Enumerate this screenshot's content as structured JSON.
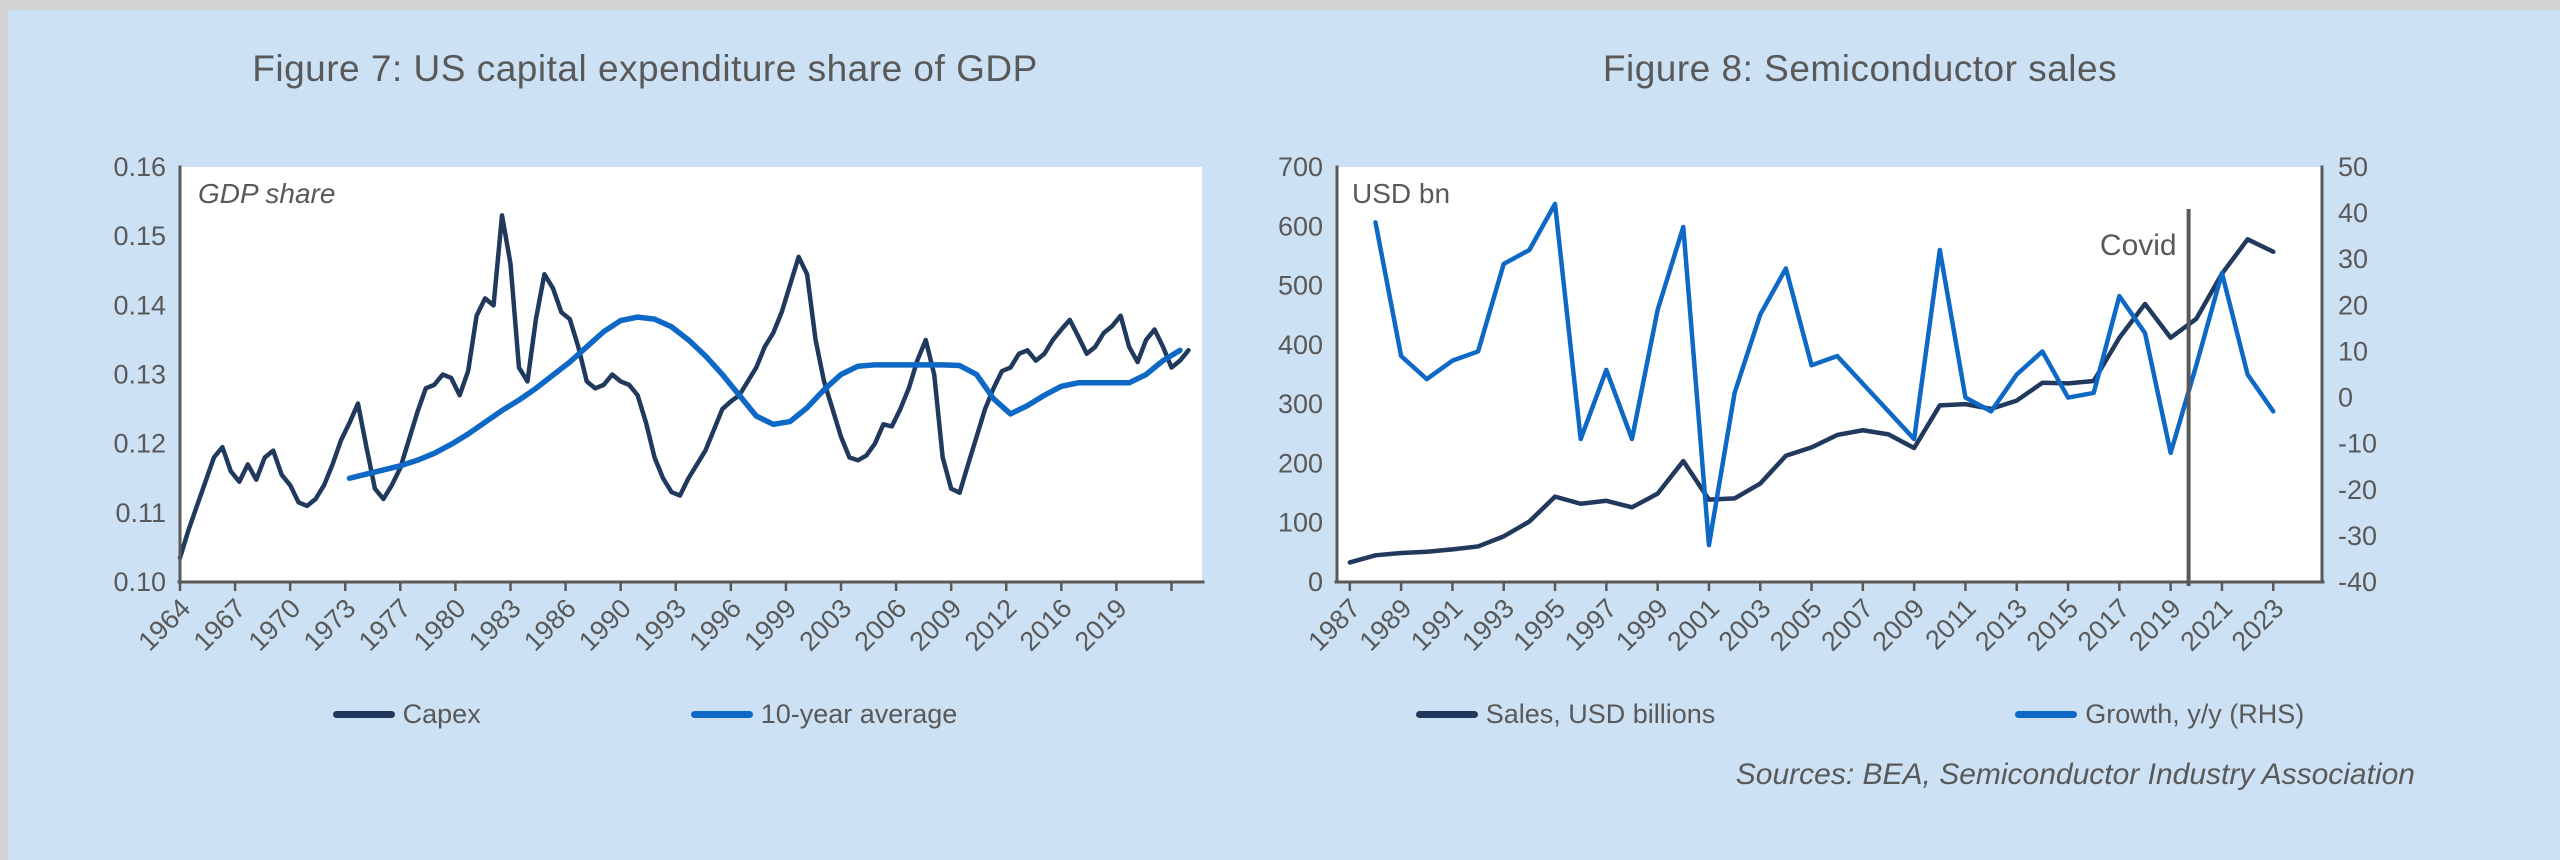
{
  "colors": {
    "panel_bg": "#cde1f4",
    "frame_bg": "#d4d4d4",
    "plot_bg": "#ffffff",
    "axis": "#595959",
    "text": "#595959",
    "navy": "#21395d",
    "blue": "#0e69c6"
  },
  "sources": "Sources: BEA, Semiconductor Industry Association",
  "chart_data": [
    {
      "type": "line",
      "title": "Figure 7: US capital expenditure share of GDP",
      "inner_label": "GDP share",
      "legend_position": "bottom",
      "grid": false,
      "axis_lines": [
        "left",
        "bottom"
      ],
      "x_axis": {
        "min": 1964,
        "max": 2024.3,
        "ticks": [
          {
            "v": 1964,
            "label": "1964"
          },
          {
            "v": 1967.25,
            "label": "1967"
          },
          {
            "v": 1970.5,
            "label": "1970"
          },
          {
            "v": 1973.75,
            "label": "1973"
          },
          {
            "v": 1977,
            "label": "1977"
          },
          {
            "v": 1980.25,
            "label": "1980"
          },
          {
            "v": 1983.5,
            "label": "1983"
          },
          {
            "v": 1986.75,
            "label": "1986"
          },
          {
            "v": 1990,
            "label": "1990"
          },
          {
            "v": 1993.25,
            "label": "1993"
          },
          {
            "v": 1996.5,
            "label": "1996"
          },
          {
            "v": 1999.75,
            "label": "1999"
          },
          {
            "v": 2003,
            "label": "2003"
          },
          {
            "v": 2006.25,
            "label": "2006"
          },
          {
            "v": 2009.5,
            "label": "2009"
          },
          {
            "v": 2012.75,
            "label": "2012"
          },
          {
            "v": 2016,
            "label": "2016"
          },
          {
            "v": 2019.25,
            "label": "2019"
          },
          {
            "v": 2022.5,
            "label": ""
          }
        ]
      },
      "y_axes": [
        {
          "side": "left",
          "min": 0.1,
          "max": 0.16,
          "ticks": [
            {
              "v": 0.16,
              "label": "0.16"
            },
            {
              "v": 0.15,
              "label": "0.15"
            },
            {
              "v": 0.14,
              "label": "0.14"
            },
            {
              "v": 0.13,
              "label": "0.13"
            },
            {
              "v": 0.12,
              "label": "0.12"
            },
            {
              "v": 0.11,
              "label": "0.11"
            },
            {
              "v": 0.1,
              "label": "0.10"
            }
          ]
        }
      ],
      "annotations": [],
      "series": [
        {
          "name": "Capex",
          "color": "navy",
          "width": 4.5,
          "axis": 0,
          "x_start": 1964,
          "x_step": 0.5,
          "values": [
            0.1035,
            0.1075,
            0.111,
            0.1145,
            0.118,
            0.1195,
            0.116,
            0.1145,
            0.117,
            0.1148,
            0.118,
            0.119,
            0.1155,
            0.114,
            0.1115,
            0.111,
            0.112,
            0.114,
            0.117,
            0.1205,
            0.123,
            0.1258,
            0.1195,
            0.1135,
            0.112,
            0.114,
            0.1165,
            0.1205,
            0.1245,
            0.128,
            0.1285,
            0.13,
            0.1295,
            0.127,
            0.1305,
            0.1385,
            0.141,
            0.14,
            0.153,
            0.146,
            0.131,
            0.129,
            0.138,
            0.1445,
            0.1425,
            0.139,
            0.138,
            0.134,
            0.129,
            0.128,
            0.1285,
            0.13,
            0.129,
            0.1285,
            0.127,
            0.123,
            0.118,
            0.115,
            0.113,
            0.1125,
            0.115,
            0.117,
            0.119,
            0.122,
            0.125,
            0.1261,
            0.127,
            0.129,
            0.131,
            0.134,
            0.136,
            0.139,
            0.143,
            0.147,
            0.1445,
            0.135,
            0.129,
            0.125,
            0.121,
            0.118,
            0.1176,
            0.1183,
            0.12,
            0.1228,
            0.1225,
            0.125,
            0.128,
            0.132,
            0.135,
            0.13,
            0.118,
            0.1135,
            0.1129,
            0.117,
            0.121,
            0.125,
            0.128,
            0.1305,
            0.131,
            0.133,
            0.1335,
            0.132,
            0.133,
            0.135,
            0.1365,
            0.1379,
            0.1355,
            0.133,
            0.134,
            0.136,
            0.137,
            0.1385,
            0.134,
            0.1318,
            0.135,
            0.1365,
            0.134,
            0.131,
            0.132,
            0.1335
          ]
        },
        {
          "name": "10-year average",
          "color": "blue",
          "width": 5.5,
          "axis": 0,
          "x_start": 1974,
          "x_step": 1,
          "values": [
            0.115,
            0.1156,
            0.1162,
            0.1168,
            0.1176,
            0.1186,
            0.1199,
            0.1214,
            0.1231,
            0.1248,
            0.1263,
            0.128,
            0.1299,
            0.1318,
            0.134,
            0.1362,
            0.1378,
            0.1383,
            0.138,
            0.1369,
            0.135,
            0.1327,
            0.13,
            0.127,
            0.124,
            0.1228,
            0.1232,
            0.1252,
            0.1278,
            0.13,
            0.1312,
            0.1314,
            0.1314,
            0.1314,
            0.1314,
            0.1314,
            0.1313,
            0.13,
            0.1265,
            0.1243,
            0.1255,
            0.127,
            0.1283,
            0.1288,
            0.1288,
            0.1288,
            0.1288,
            0.13,
            0.132,
            0.1335
          ]
        }
      ]
    },
    {
      "type": "line",
      "title": "Figure 8: Semiconductor sales",
      "inner_label": "USD bn",
      "legend_position": "bottom",
      "grid": false,
      "axis_lines": [
        "left",
        "bottom",
        "right"
      ],
      "x_axis": {
        "min": 1987,
        "max": 2025.4,
        "ticks": [
          {
            "v": 1987.5,
            "label": "1987"
          },
          {
            "v": 1989.5,
            "label": "1989"
          },
          {
            "v": 1991.5,
            "label": "1991"
          },
          {
            "v": 1993.5,
            "label": "1993"
          },
          {
            "v": 1995.5,
            "label": "1995"
          },
          {
            "v": 1997.5,
            "label": "1997"
          },
          {
            "v": 1999.5,
            "label": "1999"
          },
          {
            "v": 2001.5,
            "label": "2001"
          },
          {
            "v": 2003.5,
            "label": "2003"
          },
          {
            "v": 2005.5,
            "label": "2005"
          },
          {
            "v": 2007.5,
            "label": "2007"
          },
          {
            "v": 2009.5,
            "label": "2009"
          },
          {
            "v": 2011.5,
            "label": "2011"
          },
          {
            "v": 2013.5,
            "label": "2013"
          },
          {
            "v": 2015.5,
            "label": "2015"
          },
          {
            "v": 2017.5,
            "label": "2017"
          },
          {
            "v": 2019.5,
            "label": "2019"
          },
          {
            "v": 2021.5,
            "label": "2021"
          },
          {
            "v": 2023.5,
            "label": "2023"
          }
        ]
      },
      "y_axes": [
        {
          "side": "left",
          "min": 0,
          "max": 700,
          "ticks": [
            {
              "v": 700,
              "label": "700"
            },
            {
              "v": 600,
              "label": "600"
            },
            {
              "v": 500,
              "label": "500"
            },
            {
              "v": 400,
              "label": "400"
            },
            {
              "v": 300,
              "label": "300"
            },
            {
              "v": 200,
              "label": "200"
            },
            {
              "v": 100,
              "label": "100"
            },
            {
              "v": 0,
              "label": "0"
            }
          ]
        },
        {
          "side": "right",
          "min": -40,
          "max": 50,
          "ticks": [
            {
              "v": 50,
              "label": "50"
            },
            {
              "v": 40,
              "label": "40"
            },
            {
              "v": 30,
              "label": "30"
            },
            {
              "v": 20,
              "label": "20"
            },
            {
              "v": 10,
              "label": "10"
            },
            {
              "v": 0,
              "label": "0"
            },
            {
              "v": -10,
              "label": "-10"
            },
            {
              "v": -20,
              "label": "-20"
            },
            {
              "v": -30,
              "label": "-30"
            },
            {
              "v": -40,
              "label": "-40"
            }
          ]
        }
      ],
      "annotations": [
        {
          "type": "vline",
          "v": 2020.2,
          "label": "Covid"
        }
      ],
      "series": [
        {
          "name": "Sales, USD billions",
          "color": "navy",
          "width": 4.5,
          "axis": 0,
          "x_start": 1987.5,
          "x_step": 1,
          "values": [
            33,
            45,
            49,
            51,
            55,
            60,
            77,
            102,
            144,
            132,
            137,
            126,
            149,
            204,
            139,
            141,
            166,
            213,
            227,
            248,
            256,
            249,
            226,
            298,
            300,
            292,
            306,
            336,
            335,
            339,
            412,
            469,
            412,
            444,
            520,
            578,
            557
          ]
        },
        {
          "name": "Growth, y/y (RHS)",
          "color": "blue",
          "width": 4.5,
          "axis": 1,
          "x_start": 1988.5,
          "x_step": 1,
          "values": [
            38,
            9,
            4,
            8,
            10,
            29,
            32,
            42,
            -9,
            6,
            -9,
            19,
            37,
            -32,
            1,
            18,
            28,
            7,
            9,
            3,
            -3,
            -9,
            32,
            0,
            -3,
            5,
            10,
            0,
            1,
            22,
            14,
            -12,
            7,
            27,
            5,
            -3
          ]
        }
      ]
    }
  ]
}
